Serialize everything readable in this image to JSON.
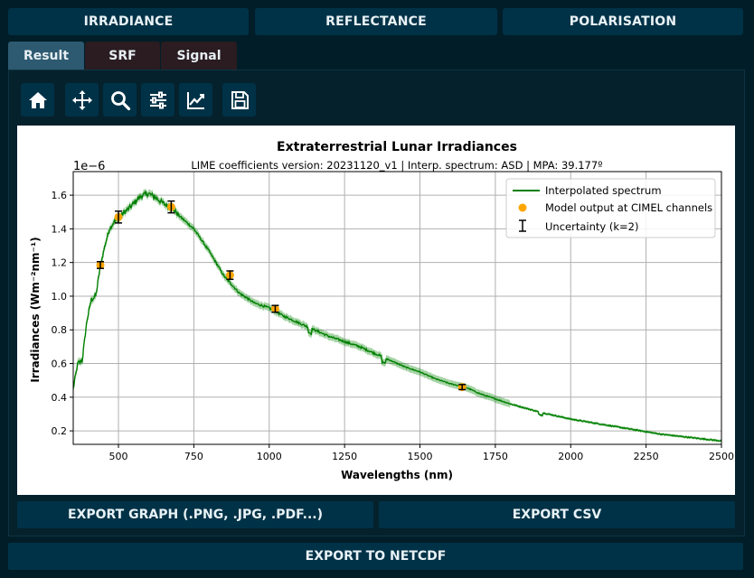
{
  "top_buttons": [
    "IRRADIANCE",
    "REFLECTANCE",
    "POLARISATION"
  ],
  "tabs": [
    "Result",
    "SRF",
    "Signal"
  ],
  "toolbar": {
    "icons": [
      "home-icon",
      "pan-icon",
      "zoom-icon",
      "configure-subplots-icon",
      "edit-axis-icon",
      "save-icon"
    ]
  },
  "chart_data": {
    "type": "line",
    "title": "Extraterrestrial Lunar Irradiances",
    "subtitle": "LIME coefficients version: 20231120_v1 | Interp. spectrum: ASD | MPA: 39.177º",
    "xlabel": "Wavelengths (nm)",
    "ylabel": "Irradiances (Wm⁻²nm⁻¹)",
    "y_offset_label": "1e−6",
    "xlim": [
      350,
      2500
    ],
    "ylim": [
      0.12,
      1.74
    ],
    "x_ticks": [
      500,
      750,
      1000,
      1250,
      1500,
      1750,
      2000,
      2250,
      2500
    ],
    "y_ticks": [
      0.2,
      0.4,
      0.6,
      0.8,
      1.0,
      1.2,
      1.4,
      1.6
    ],
    "y_tick_labels": [
      "0.2",
      "0.4",
      "0.6",
      "0.8",
      "1.0",
      "1.2",
      "1.4",
      "1.6"
    ],
    "grid": true,
    "legend_position": "top-right",
    "legend": [
      "Interpolated spectrum",
      "Model output at CIMEL channels",
      "Uncertainty (k=2)"
    ],
    "series": [
      {
        "name": "Interpolated spectrum",
        "color": "#008000",
        "x": [
          350,
          365,
          380,
          395,
          410,
          425,
          440,
          455,
          470,
          485,
          500,
          520,
          540,
          560,
          580,
          600,
          620,
          650,
          680,
          700,
          750,
          800,
          850,
          900,
          950,
          1000,
          1050,
          1100,
          1150,
          1200,
          1250,
          1300,
          1350,
          1400,
          1450,
          1500,
          1550,
          1600,
          1650,
          1700,
          1750,
          1800,
          1900,
          2000,
          2100,
          2200,
          2300,
          2400,
          2500
        ],
        "y": [
          0.45,
          0.6,
          0.62,
          0.85,
          0.98,
          1.0,
          1.18,
          1.3,
          1.4,
          1.44,
          1.46,
          1.5,
          1.53,
          1.57,
          1.6,
          1.61,
          1.59,
          1.55,
          1.52,
          1.48,
          1.4,
          1.27,
          1.12,
          1.02,
          0.96,
          0.93,
          0.88,
          0.84,
          0.8,
          0.76,
          0.73,
          0.7,
          0.66,
          0.62,
          0.58,
          0.55,
          0.51,
          0.48,
          0.46,
          0.42,
          0.39,
          0.36,
          0.31,
          0.27,
          0.24,
          0.21,
          0.18,
          0.16,
          0.14
        ]
      },
      {
        "name": "Model output at CIMEL channels",
        "color": "#ffa500",
        "x": [
          440,
          500,
          675,
          870,
          1020,
          1640
        ],
        "y": [
          1.185,
          1.47,
          1.53,
          1.125,
          0.925,
          0.46
        ],
        "err": [
          0.02,
          0.035,
          0.035,
          0.025,
          0.02,
          0.015
        ]
      }
    ]
  },
  "export": {
    "graph": "EXPORT GRAPH (.PNG, .JPG, .PDF...)",
    "csv": "EXPORT CSV",
    "netcdf": "EXPORT TO NETCDF"
  }
}
